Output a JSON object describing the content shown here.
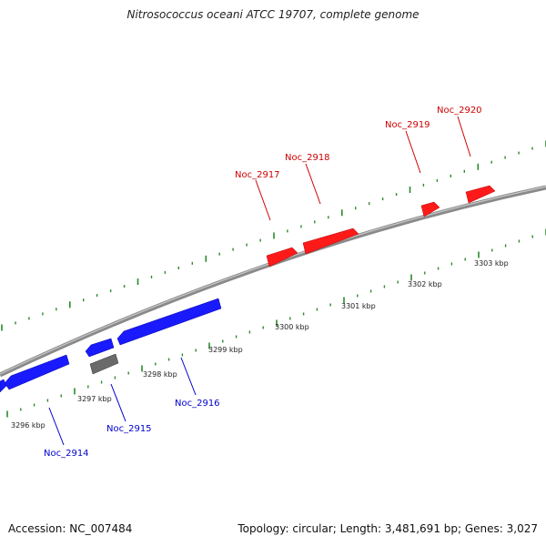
{
  "title": "Nitrosococcus oceani ATCC 19707, complete genome",
  "footer": {
    "accession": "Accession: NC_007484",
    "summary": "Topology: circular; Length: 3,481,691 bp; Genes: 3,027"
  },
  "colors": {
    "forward_gene": "#ff0000",
    "reverse_gene": "#0000ff",
    "other_gene": "#707070",
    "tick": "#2a8a2a",
    "backbone": "#888888",
    "forward_label": "#cc0000",
    "reverse_label": "#0000cc"
  },
  "scale_labels": [
    "3296 kbp",
    "3297 kbp",
    "3298 kbp",
    "3299 kbp",
    "3300 kbp",
    "3301 kbp",
    "3302 kbp",
    "3303 kbp"
  ],
  "genes": [
    {
      "name": "Noc_2914",
      "strand": "reverse"
    },
    {
      "name": "Noc_2915",
      "strand": "reverse"
    },
    {
      "name": "Noc_2916",
      "strand": "reverse"
    },
    {
      "name": "Noc_2917",
      "strand": "forward"
    },
    {
      "name": "Noc_2918",
      "strand": "forward"
    },
    {
      "name": "Noc_2919",
      "strand": "forward"
    },
    {
      "name": "Noc_2920",
      "strand": "forward"
    }
  ]
}
